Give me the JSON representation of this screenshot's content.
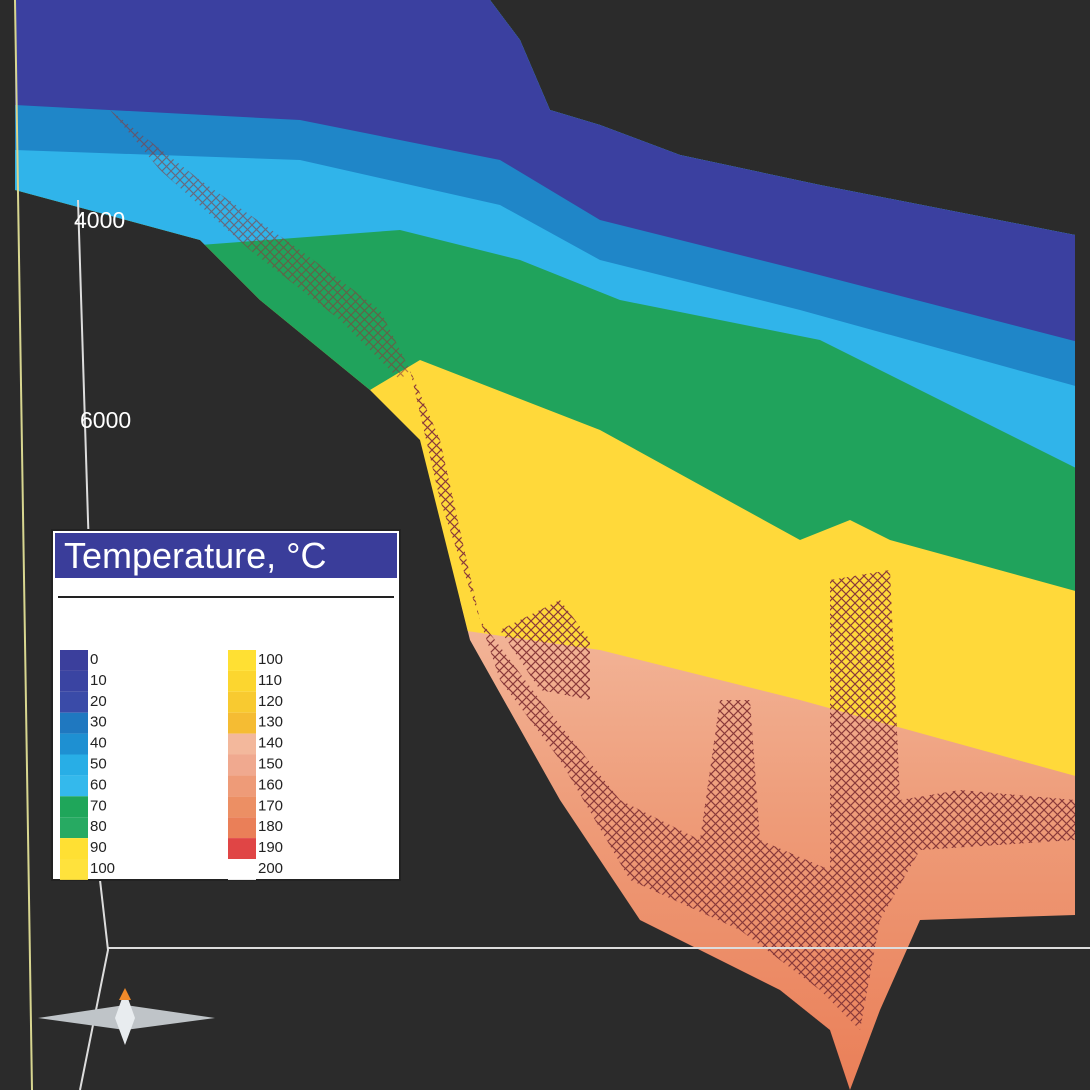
{
  "depth_labels": [
    "4000",
    "6000"
  ],
  "legend": {
    "title": "Temperature, °C",
    "columns": [
      [
        {
          "label": "0",
          "color": "#3b3f9c"
        },
        {
          "label": "10",
          "color": "#3a44a2"
        },
        {
          "label": "20",
          "color": "#3a4ba8"
        },
        {
          "label": "30",
          "color": "#1f78c0"
        },
        {
          "label": "40",
          "color": "#1e90d2"
        },
        {
          "label": "50",
          "color": "#28aee6"
        },
        {
          "label": "60",
          "color": "#34b9ec"
        },
        {
          "label": "70",
          "color": "#1fa65a"
        },
        {
          "label": "80",
          "color": "#27aa62"
        },
        {
          "label": "90",
          "color": "#ffe033"
        },
        {
          "label": "100",
          "color": "#ffe23c"
        }
      ],
      [
        {
          "label": "100",
          "color": "#ffe033"
        },
        {
          "label": "110",
          "color": "#fcd62f"
        },
        {
          "label": "120",
          "color": "#f8ca30"
        },
        {
          "label": "130",
          "color": "#f5bc33"
        },
        {
          "label": "140",
          "color": "#f3b89c"
        },
        {
          "label": "150",
          "color": "#f0a98f"
        },
        {
          "label": "160",
          "color": "#ee9b78"
        },
        {
          "label": "170",
          "color": "#ec8f64"
        },
        {
          "label": "180",
          "color": "#ea7f58"
        },
        {
          "label": "190",
          "color": "#e04545"
        },
        {
          "label": "200",
          "color": "#ffffff"
        }
      ]
    ]
  }
}
